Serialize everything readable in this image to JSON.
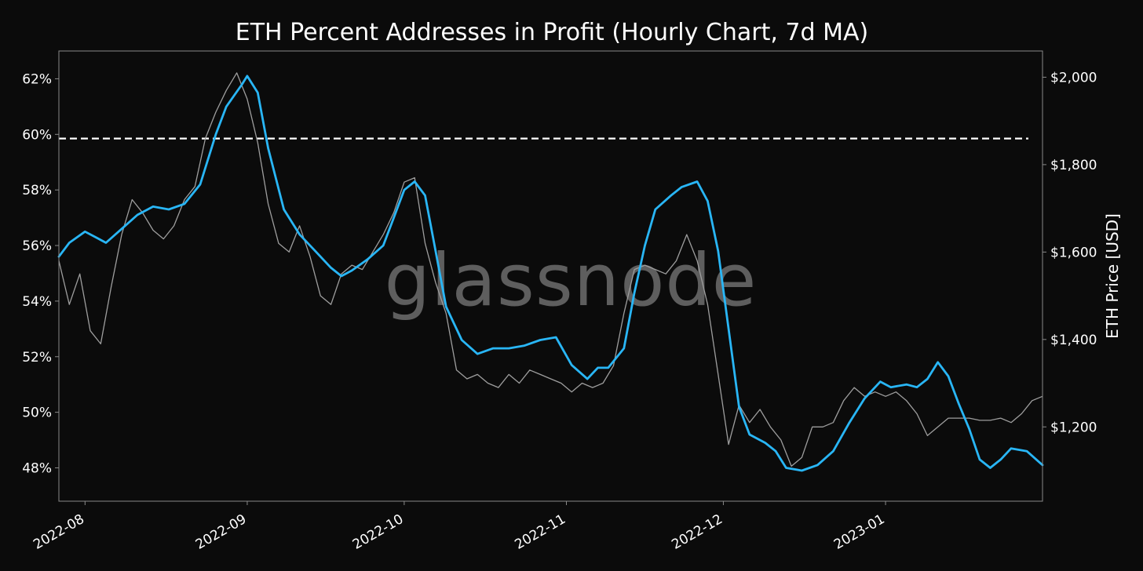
{
  "colors": {
    "background": "#0b0b0b",
    "frame": "#8a8a8a",
    "metric_line": "#29b6f6",
    "price_line": "#9e9e9e",
    "reference_line": "#ffffff",
    "text": "#ffffff"
  },
  "watermark": "glassnode",
  "chart_data": {
    "type": "line",
    "title": "ETH Percent Addresses in Profit (Hourly Chart, 7d MA)",
    "ylabel_left": "",
    "ylabel_right": "ETH Price [USD]",
    "x_range": [
      "2022-07-27",
      "2023-01-31"
    ],
    "xtick_labels": [
      "2022-08",
      "2022-09",
      "2022-10",
      "2022-11",
      "2022-12",
      "2023-01"
    ],
    "xtick_dates": [
      "2022-08-01",
      "2022-09-01",
      "2022-10-01",
      "2022-11-01",
      "2022-12-01",
      "2023-01-01"
    ],
    "ylim_left": [
      46.8,
      63.0
    ],
    "ytick_left_values": [
      48,
      50,
      52,
      54,
      56,
      58,
      60,
      62
    ],
    "ytick_left_labels": [
      "48%",
      "50%",
      "52%",
      "54%",
      "56%",
      "58%",
      "60%",
      "62%"
    ],
    "ylim_right": [
      1030,
      2060
    ],
    "ytick_right_values": [
      1200,
      1400,
      1600,
      1800,
      2000
    ],
    "ytick_right_labels": [
      "$1,200",
      "$1,400",
      "$1,600",
      "$1,800",
      "$2,000"
    ],
    "reference_line": {
      "axis": "left",
      "value": 59.85,
      "style": "dashed"
    },
    "series": [
      {
        "axis": "left",
        "points": [
          [
            "2022-07-27",
            55.6
          ],
          [
            "2022-07-29",
            56.1
          ],
          [
            "2022-08-01",
            56.5
          ],
          [
            "2022-08-03",
            56.3
          ],
          [
            "2022-08-05",
            56.1
          ],
          [
            "2022-08-08",
            56.6
          ],
          [
            "2022-08-11",
            57.1
          ],
          [
            "2022-08-14",
            57.4
          ],
          [
            "2022-08-17",
            57.3
          ],
          [
            "2022-08-20",
            57.5
          ],
          [
            "2022-08-23",
            58.2
          ],
          [
            "2022-08-26",
            60.0
          ],
          [
            "2022-08-28",
            61.0
          ],
          [
            "2022-08-31",
            61.8
          ],
          [
            "2022-09-01",
            62.1
          ],
          [
            "2022-09-03",
            61.5
          ],
          [
            "2022-09-05",
            59.5
          ],
          [
            "2022-09-08",
            57.3
          ],
          [
            "2022-09-11",
            56.4
          ],
          [
            "2022-09-14",
            55.8
          ],
          [
            "2022-09-17",
            55.2
          ],
          [
            "2022-09-19",
            54.9
          ],
          [
            "2022-09-21",
            55.1
          ],
          [
            "2022-09-24",
            55.5
          ],
          [
            "2022-09-27",
            56.0
          ],
          [
            "2022-09-29",
            57.0
          ],
          [
            "2022-10-01",
            58.0
          ],
          [
            "2022-10-03",
            58.3
          ],
          [
            "2022-10-05",
            57.8
          ],
          [
            "2022-10-07",
            55.8
          ],
          [
            "2022-10-09",
            53.8
          ],
          [
            "2022-10-12",
            52.6
          ],
          [
            "2022-10-15",
            52.1
          ],
          [
            "2022-10-18",
            52.3
          ],
          [
            "2022-10-21",
            52.3
          ],
          [
            "2022-10-24",
            52.4
          ],
          [
            "2022-10-27",
            52.6
          ],
          [
            "2022-10-30",
            52.7
          ],
          [
            "2022-11-02",
            51.7
          ],
          [
            "2022-11-05",
            51.2
          ],
          [
            "2022-11-07",
            51.6
          ],
          [
            "2022-11-09",
            51.6
          ],
          [
            "2022-11-12",
            52.3
          ],
          [
            "2022-11-14",
            54.3
          ],
          [
            "2022-11-16",
            56.0
          ],
          [
            "2022-11-18",
            57.3
          ],
          [
            "2022-11-21",
            57.8
          ],
          [
            "2022-11-23",
            58.1
          ],
          [
            "2022-11-26",
            58.3
          ],
          [
            "2022-11-28",
            57.6
          ],
          [
            "2022-11-30",
            55.8
          ],
          [
            "2022-12-02",
            53.0
          ],
          [
            "2022-12-04",
            50.2
          ],
          [
            "2022-12-06",
            49.2
          ],
          [
            "2022-12-09",
            48.9
          ],
          [
            "2022-12-11",
            48.6
          ],
          [
            "2022-12-13",
            48.0
          ],
          [
            "2022-12-16",
            47.9
          ],
          [
            "2022-12-19",
            48.1
          ],
          [
            "2022-12-22",
            48.6
          ],
          [
            "2022-12-25",
            49.6
          ],
          [
            "2022-12-28",
            50.5
          ],
          [
            "2022-12-31",
            51.1
          ],
          [
            "2023-01-02",
            50.9
          ],
          [
            "2023-01-05",
            51.0
          ],
          [
            "2023-01-07",
            50.9
          ],
          [
            "2023-01-09",
            51.2
          ],
          [
            "2023-01-11",
            51.8
          ],
          [
            "2023-01-13",
            51.3
          ],
          [
            "2023-01-15",
            50.3
          ],
          [
            "2023-01-17",
            49.4
          ],
          [
            "2023-01-19",
            48.3
          ],
          [
            "2023-01-21",
            48.0
          ],
          [
            "2023-01-23",
            48.3
          ],
          [
            "2023-01-25",
            48.7
          ],
          [
            "2023-01-28",
            48.6
          ],
          [
            "2023-01-31",
            48.1
          ]
        ]
      },
      {
        "axis": "right",
        "points": [
          [
            "2022-07-27",
            1580
          ],
          [
            "2022-07-29",
            1480
          ],
          [
            "2022-07-31",
            1550
          ],
          [
            "2022-08-02",
            1420
          ],
          [
            "2022-08-04",
            1390
          ],
          [
            "2022-08-06",
            1520
          ],
          [
            "2022-08-08",
            1640
          ],
          [
            "2022-08-10",
            1720
          ],
          [
            "2022-08-12",
            1690
          ],
          [
            "2022-08-14",
            1650
          ],
          [
            "2022-08-16",
            1630
          ],
          [
            "2022-08-18",
            1660
          ],
          [
            "2022-08-20",
            1720
          ],
          [
            "2022-08-22",
            1750
          ],
          [
            "2022-08-24",
            1860
          ],
          [
            "2022-08-26",
            1920
          ],
          [
            "2022-08-28",
            1970
          ],
          [
            "2022-08-30",
            2010
          ],
          [
            "2022-09-01",
            1950
          ],
          [
            "2022-09-03",
            1850
          ],
          [
            "2022-09-05",
            1710
          ],
          [
            "2022-09-07",
            1620
          ],
          [
            "2022-09-09",
            1600
          ],
          [
            "2022-09-11",
            1660
          ],
          [
            "2022-09-13",
            1590
          ],
          [
            "2022-09-15",
            1500
          ],
          [
            "2022-09-17",
            1480
          ],
          [
            "2022-09-19",
            1550
          ],
          [
            "2022-09-21",
            1570
          ],
          [
            "2022-09-23",
            1560
          ],
          [
            "2022-09-25",
            1600
          ],
          [
            "2022-09-27",
            1640
          ],
          [
            "2022-09-29",
            1690
          ],
          [
            "2022-10-01",
            1760
          ],
          [
            "2022-10-03",
            1770
          ],
          [
            "2022-10-05",
            1620
          ],
          [
            "2022-10-07",
            1530
          ],
          [
            "2022-10-09",
            1460
          ],
          [
            "2022-10-11",
            1330
          ],
          [
            "2022-10-13",
            1310
          ],
          [
            "2022-10-15",
            1320
          ],
          [
            "2022-10-17",
            1300
          ],
          [
            "2022-10-19",
            1290
          ],
          [
            "2022-10-21",
            1320
          ],
          [
            "2022-10-23",
            1300
          ],
          [
            "2022-10-25",
            1330
          ],
          [
            "2022-10-27",
            1320
          ],
          [
            "2022-10-29",
            1310
          ],
          [
            "2022-10-31",
            1300
          ],
          [
            "2022-11-02",
            1280
          ],
          [
            "2022-11-04",
            1300
          ],
          [
            "2022-11-06",
            1290
          ],
          [
            "2022-11-08",
            1300
          ],
          [
            "2022-11-10",
            1340
          ],
          [
            "2022-11-12",
            1460
          ],
          [
            "2022-11-14",
            1560
          ],
          [
            "2022-11-16",
            1570
          ],
          [
            "2022-11-18",
            1560
          ],
          [
            "2022-11-20",
            1550
          ],
          [
            "2022-11-22",
            1580
          ],
          [
            "2022-11-24",
            1640
          ],
          [
            "2022-11-26",
            1580
          ],
          [
            "2022-11-28",
            1480
          ],
          [
            "2022-11-30",
            1320
          ],
          [
            "2022-12-02",
            1160
          ],
          [
            "2022-12-04",
            1250
          ],
          [
            "2022-12-06",
            1210
          ],
          [
            "2022-12-08",
            1240
          ],
          [
            "2022-12-10",
            1200
          ],
          [
            "2022-12-12",
            1170
          ],
          [
            "2022-12-14",
            1110
          ],
          [
            "2022-12-16",
            1130
          ],
          [
            "2022-12-18",
            1200
          ],
          [
            "2022-12-20",
            1200
          ],
          [
            "2022-12-22",
            1210
          ],
          [
            "2022-12-24",
            1260
          ],
          [
            "2022-12-26",
            1290
          ],
          [
            "2022-12-28",
            1270
          ],
          [
            "2022-12-30",
            1280
          ],
          [
            "2023-01-01",
            1270
          ],
          [
            "2023-01-03",
            1280
          ],
          [
            "2023-01-05",
            1260
          ],
          [
            "2023-01-07",
            1230
          ],
          [
            "2023-01-09",
            1180
          ],
          [
            "2023-01-11",
            1200
          ],
          [
            "2023-01-13",
            1220
          ],
          [
            "2023-01-15",
            1220
          ],
          [
            "2023-01-17",
            1220
          ],
          [
            "2023-01-19",
            1215
          ],
          [
            "2023-01-21",
            1215
          ],
          [
            "2023-01-23",
            1220
          ],
          [
            "2023-01-25",
            1210
          ],
          [
            "2023-01-27",
            1230
          ],
          [
            "2023-01-29",
            1260
          ],
          [
            "2023-01-31",
            1270
          ]
        ]
      }
    ]
  }
}
